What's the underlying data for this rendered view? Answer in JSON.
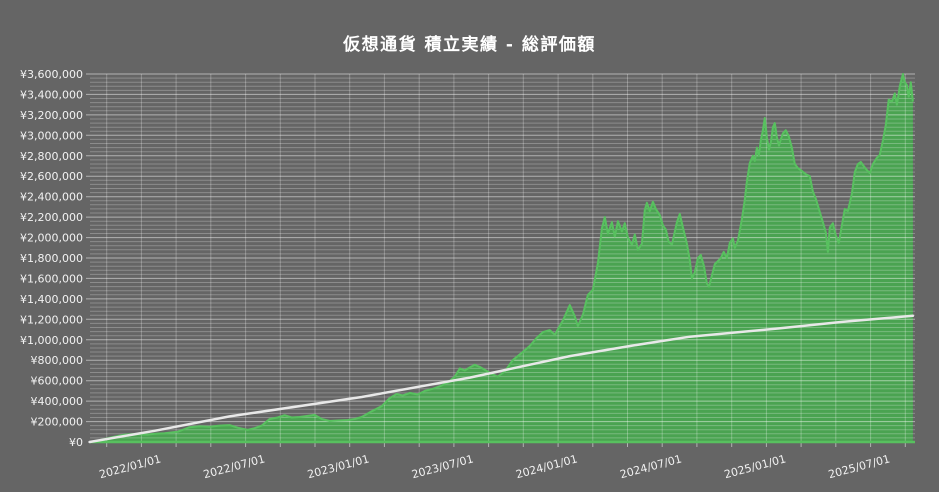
{
  "title": "仮想通貨 積立実績 - 総評価額",
  "colors": {
    "background": "#656565",
    "title_text": "#ffffff",
    "axis_text": "#f2f2f2",
    "area_fill": "#4aa351",
    "area_edge": "#58c05f",
    "investment_line": "#e8e8e8",
    "grid_minor": "rgba(255,255,255,0.26)",
    "grid_major": "rgba(255,255,255,0.50)",
    "grid_vertical": "rgba(255,255,255,0.28)",
    "axis_tick": "rgba(255,255,255,0.50)"
  },
  "chart_data": {
    "type": "area",
    "title": "仮想通貨 積立実績 - 総評価額",
    "xlabel": "",
    "ylabel": "",
    "x_domain": [
      2021.69,
      2025.65
    ],
    "ylim": [
      0,
      3600000
    ],
    "y_major_step": 200000,
    "y_minor_step": 40000,
    "x_grid_step_years": 0.1666667,
    "x_grid_start": 2021.77,
    "grid": true,
    "legend_position": "none",
    "x_ticks": [
      {
        "value": 2022.0,
        "label": "2022/01/01"
      },
      {
        "value": 2022.5,
        "label": "2022/07/01"
      },
      {
        "value": 2023.0,
        "label": "2023/01/01"
      },
      {
        "value": 2023.5,
        "label": "2023/07/01"
      },
      {
        "value": 2024.0,
        "label": "2024/01/01"
      },
      {
        "value": 2024.5,
        "label": "2024/07/01"
      },
      {
        "value": 2025.0,
        "label": "2025/01/01"
      },
      {
        "value": 2025.5,
        "label": "2025/07/01"
      }
    ],
    "y_ticks": [
      {
        "value": 0,
        "label": "¥0"
      },
      {
        "value": 200000,
        "label": "¥200,000"
      },
      {
        "value": 400000,
        "label": "¥400,000"
      },
      {
        "value": 600000,
        "label": "¥600,000"
      },
      {
        "value": 800000,
        "label": "¥800,000"
      },
      {
        "value": 1000000,
        "label": "¥1,000,000"
      },
      {
        "value": 1200000,
        "label": "¥1,200,000"
      },
      {
        "value": 1400000,
        "label": "¥1,400,000"
      },
      {
        "value": 1600000,
        "label": "¥1,600,000"
      },
      {
        "value": 1800000,
        "label": "¥1,800,000"
      },
      {
        "value": 2000000,
        "label": "¥2,000,000"
      },
      {
        "value": 2200000,
        "label": "¥2,200,000"
      },
      {
        "value": 2400000,
        "label": "¥2,400,000"
      },
      {
        "value": 2600000,
        "label": "¥2,600,000"
      },
      {
        "value": 2800000,
        "label": "¥2,800,000"
      },
      {
        "value": 3000000,
        "label": "¥3,000,000"
      },
      {
        "value": 3200000,
        "label": "¥3,200,000"
      },
      {
        "value": 3400000,
        "label": "¥3,400,000"
      },
      {
        "value": 3600000,
        "label": "¥3,600,000"
      }
    ],
    "series": [
      {
        "name": "総評価額",
        "type": "area",
        "color": "#4aa351",
        "edge_color": "#58c05f",
        "points": [
          [
            2021.688,
            0
          ],
          [
            2021.736,
            18000
          ],
          [
            2021.793,
            45000
          ],
          [
            2021.851,
            70000
          ],
          [
            2021.904,
            78000
          ],
          [
            2021.966,
            72000
          ],
          [
            2022.0,
            80000
          ],
          [
            2022.048,
            85000
          ],
          [
            2022.11,
            100000
          ],
          [
            2022.168,
            145000
          ],
          [
            2022.216,
            155000
          ],
          [
            2022.264,
            150000
          ],
          [
            2022.312,
            160000
          ],
          [
            2022.36,
            165000
          ],
          [
            2022.399,
            140000
          ],
          [
            2022.447,
            118000
          ],
          [
            2022.48,
            135000
          ],
          [
            2022.514,
            160000
          ],
          [
            2022.552,
            225000
          ],
          [
            2022.591,
            240000
          ],
          [
            2022.624,
            262000
          ],
          [
            2022.658,
            240000
          ],
          [
            2022.696,
            245000
          ],
          [
            2022.735,
            255000
          ],
          [
            2022.768,
            265000
          ],
          [
            2022.802,
            225000
          ],
          [
            2022.841,
            205000
          ],
          [
            2022.879,
            210000
          ],
          [
            2022.927,
            215000
          ],
          [
            2022.961,
            225000
          ],
          [
            2022.994,
            245000
          ],
          [
            2023.042,
            300000
          ],
          [
            2023.09,
            350000
          ],
          [
            2023.129,
            430000
          ],
          [
            2023.162,
            470000
          ],
          [
            2023.191,
            455000
          ],
          [
            2023.225,
            480000
          ],
          [
            2023.263,
            465000
          ],
          [
            2023.297,
            500000
          ],
          [
            2023.335,
            520000
          ],
          [
            2023.369,
            545000
          ],
          [
            2023.407,
            580000
          ],
          [
            2023.441,
            640000
          ],
          [
            2023.465,
            720000
          ],
          [
            2023.489,
            700000
          ],
          [
            2023.513,
            730000
          ],
          [
            2023.537,
            755000
          ],
          [
            2023.561,
            735000
          ],
          [
            2023.59,
            700000
          ],
          [
            2023.619,
            665000
          ],
          [
            2023.647,
            640000
          ],
          [
            2023.681,
            690000
          ],
          [
            2023.719,
            800000
          ],
          [
            2023.767,
            880000
          ],
          [
            2023.801,
            940000
          ],
          [
            2023.835,
            1020000
          ],
          [
            2023.864,
            1075000
          ],
          [
            2023.897,
            1095000
          ],
          [
            2023.921,
            1050000
          ],
          [
            2023.96,
            1190000
          ],
          [
            2023.993,
            1340000
          ],
          [
            2024.017,
            1230000
          ],
          [
            2024.032,
            1135000
          ],
          [
            2024.056,
            1245000
          ],
          [
            2024.08,
            1440000
          ],
          [
            2024.104,
            1490000
          ],
          [
            2024.128,
            1750000
          ],
          [
            2024.147,
            2090000
          ],
          [
            2024.161,
            2200000
          ],
          [
            2024.176,
            2040000
          ],
          [
            2024.195,
            2150000
          ],
          [
            2024.209,
            2010000
          ],
          [
            2024.224,
            2160000
          ],
          [
            2024.243,
            2060000
          ],
          [
            2024.257,
            2140000
          ],
          [
            2024.272,
            2000000
          ],
          [
            2024.291,
            1930000
          ],
          [
            2024.305,
            2030000
          ],
          [
            2024.32,
            1880000
          ],
          [
            2024.339,
            1940000
          ],
          [
            2024.353,
            2270000
          ],
          [
            2024.363,
            2340000
          ],
          [
            2024.377,
            2260000
          ],
          [
            2024.392,
            2350000
          ],
          [
            2024.406,
            2280000
          ],
          [
            2024.425,
            2220000
          ],
          [
            2024.44,
            2120000
          ],
          [
            2024.454,
            2080000
          ],
          [
            2024.468,
            1960000
          ],
          [
            2024.483,
            1930000
          ],
          [
            2024.507,
            2150000
          ],
          [
            2024.521,
            2230000
          ],
          [
            2024.536,
            2100000
          ],
          [
            2024.555,
            1940000
          ],
          [
            2024.569,
            1780000
          ],
          [
            2024.579,
            1600000
          ],
          [
            2024.593,
            1660000
          ],
          [
            2024.608,
            1800000
          ],
          [
            2024.622,
            1830000
          ],
          [
            2024.637,
            1720000
          ],
          [
            2024.651,
            1550000
          ],
          [
            2024.661,
            1520000
          ],
          [
            2024.675,
            1630000
          ],
          [
            2024.689,
            1740000
          ],
          [
            2024.704,
            1770000
          ],
          [
            2024.718,
            1800000
          ],
          [
            2024.732,
            1860000
          ],
          [
            2024.747,
            1800000
          ],
          [
            2024.761,
            1950000
          ],
          [
            2024.776,
            1990000
          ],
          [
            2024.785,
            1900000
          ],
          [
            2024.8,
            1970000
          ],
          [
            2024.809,
            2070000
          ],
          [
            2024.819,
            2180000
          ],
          [
            2024.833,
            2370000
          ],
          [
            2024.843,
            2550000
          ],
          [
            2024.857,
            2730000
          ],
          [
            2024.872,
            2800000
          ],
          [
            2024.881,
            2750000
          ],
          [
            2024.891,
            2880000
          ],
          [
            2024.9,
            2800000
          ],
          [
            2024.91,
            2950000
          ],
          [
            2024.92,
            3050000
          ],
          [
            2024.929,
            3170000
          ],
          [
            2024.939,
            2980000
          ],
          [
            2024.949,
            2860000
          ],
          [
            2024.958,
            2930000
          ],
          [
            2024.968,
            3080000
          ],
          [
            2024.977,
            3120000
          ],
          [
            2024.987,
            2980000
          ],
          [
            2024.997,
            2900000
          ],
          [
            2025.006,
            2960000
          ],
          [
            2025.016,
            3020000
          ],
          [
            2025.03,
            3050000
          ],
          [
            2025.044,
            2990000
          ],
          [
            2025.059,
            2880000
          ],
          [
            2025.073,
            2720000
          ],
          [
            2025.088,
            2680000
          ],
          [
            2025.107,
            2650000
          ],
          [
            2025.126,
            2620000
          ],
          [
            2025.145,
            2600000
          ],
          [
            2025.16,
            2450000
          ],
          [
            2025.174,
            2380000
          ],
          [
            2025.193,
            2250000
          ],
          [
            2025.208,
            2150000
          ],
          [
            2025.222,
            2050000
          ],
          [
            2025.232,
            1860000
          ],
          [
            2025.241,
            2100000
          ],
          [
            2025.256,
            2140000
          ],
          [
            2025.27,
            2020000
          ],
          [
            2025.284,
            1950000
          ],
          [
            2025.299,
            2120000
          ],
          [
            2025.313,
            2280000
          ],
          [
            2025.328,
            2260000
          ],
          [
            2025.347,
            2430000
          ],
          [
            2025.361,
            2640000
          ],
          [
            2025.376,
            2720000
          ],
          [
            2025.39,
            2740000
          ],
          [
            2025.404,
            2700000
          ],
          [
            2025.419,
            2660000
          ],
          [
            2025.433,
            2630000
          ],
          [
            2025.448,
            2720000
          ],
          [
            2025.467,
            2780000
          ],
          [
            2025.481,
            2810000
          ],
          [
            2025.496,
            2950000
          ],
          [
            2025.51,
            3100000
          ],
          [
            2025.524,
            3350000
          ],
          [
            2025.539,
            3330000
          ],
          [
            2025.553,
            3410000
          ],
          [
            2025.563,
            3300000
          ],
          [
            2025.577,
            3480000
          ],
          [
            2025.592,
            3600000
          ],
          [
            2025.601,
            3520000
          ],
          [
            2025.611,
            3490000
          ],
          [
            2025.62,
            3380000
          ],
          [
            2025.63,
            3520000
          ],
          [
            2025.64,
            3330000
          ]
        ]
      },
      {
        "name": "cumulative-investment",
        "type": "line",
        "color": "#e8e8e8",
        "points": [
          [
            2021.688,
            0
          ],
          [
            2022.0,
            110000
          ],
          [
            2022.36,
            250000
          ],
          [
            2022.994,
            440000
          ],
          [
            2023.513,
            630000
          ],
          [
            2023.993,
            840000
          ],
          [
            2024.3,
            945000
          ],
          [
            2024.569,
            1030000
          ],
          [
            2024.992,
            1110000
          ],
          [
            2025.3,
            1175000
          ],
          [
            2025.64,
            1235000
          ]
        ]
      }
    ]
  }
}
